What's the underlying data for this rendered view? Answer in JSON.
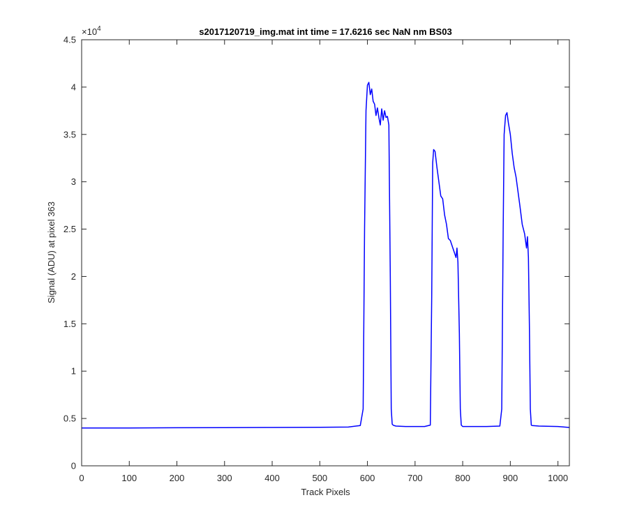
{
  "chart_data": {
    "type": "line",
    "title": "s2017120719_img.mat int time = 17.6216 sec  NaN nm BS03",
    "xlabel": "Track Pixels",
    "ylabel": "Signal (ADU) at pixel 363",
    "y_exponent_label": "×10",
    "y_exponent_power": "4",
    "xlim": [
      0,
      1024
    ],
    "ylim": [
      0,
      45000
    ],
    "x_ticks": [
      0,
      100,
      200,
      300,
      400,
      500,
      600,
      700,
      800,
      900,
      1000
    ],
    "x_tick_labels": [
      "0",
      "100",
      "200",
      "300",
      "400",
      "500",
      "600",
      "700",
      "800",
      "900",
      "1000"
    ],
    "y_ticks": [
      0,
      5000,
      10000,
      15000,
      20000,
      25000,
      30000,
      35000,
      40000,
      45000
    ],
    "y_tick_labels": [
      "0",
      "0.5",
      "1",
      "1.5",
      "2",
      "2.5",
      "3",
      "3.5",
      "4",
      "4.5"
    ],
    "grid": false,
    "series": [
      {
        "color": "#0000ff",
        "x": [
          0,
          100,
          200,
          300,
          400,
          500,
          560,
          585,
          591,
          594,
          597,
          600,
          603,
          606,
          609,
          612,
          615,
          618,
          621,
          624,
          627,
          630,
          633,
          636,
          639,
          642,
          645,
          648,
          650,
          652,
          654,
          656,
          660,
          680,
          700,
          720,
          732,
          735,
          737,
          739,
          742,
          746,
          750,
          754,
          758,
          762,
          766,
          770,
          774,
          778,
          782,
          786,
          788,
          790,
          793,
          795,
          797,
          800,
          820,
          850,
          878,
          882,
          885,
          887,
          890,
          893,
          896,
          900,
          904,
          908,
          912,
          916,
          920,
          925,
          930,
          934,
          936,
          938,
          940,
          942,
          944,
          946,
          960,
          1000,
          1024
        ],
        "y": [
          4000,
          4000,
          4020,
          4030,
          4050,
          4070,
          4100,
          4250,
          6000,
          25000,
          37500,
          40200,
          40500,
          39200,
          39800,
          38500,
          38200,
          37000,
          37800,
          36800,
          36000,
          37700,
          36500,
          37500,
          36800,
          36900,
          36000,
          20000,
          6000,
          4400,
          4300,
          4250,
          4200,
          4150,
          4150,
          4150,
          4300,
          18000,
          32000,
          33400,
          33200,
          31500,
          30000,
          28500,
          28200,
          26500,
          25500,
          24000,
          23800,
          23200,
          22600,
          22000,
          23000,
          21500,
          14000,
          6000,
          4300,
          4150,
          4150,
          4150,
          4200,
          6000,
          25000,
          35000,
          37000,
          37300,
          36200,
          35000,
          33000,
          31500,
          30500,
          29000,
          27500,
          25500,
          24500,
          23000,
          24200,
          22000,
          15000,
          6000,
          4300,
          4250,
          4200,
          4150,
          4050
        ]
      }
    ]
  }
}
